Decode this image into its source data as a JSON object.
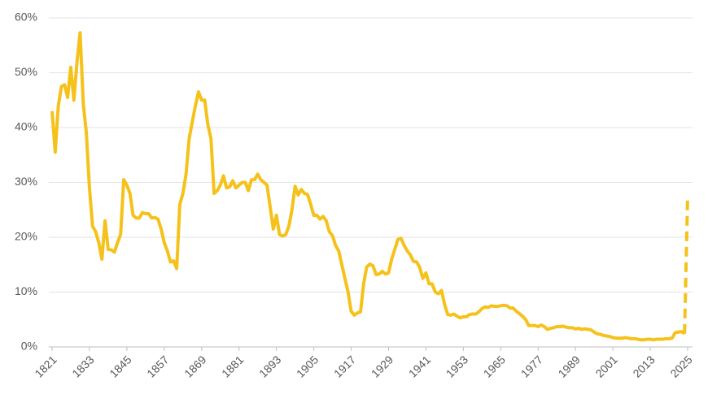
{
  "chart_data": {
    "type": "line",
    "xlim": [
      1821,
      2025
    ],
    "xticks": [
      1821,
      1833,
      1845,
      1857,
      1869,
      1881,
      1893,
      1905,
      1917,
      1929,
      1941,
      1953,
      1965,
      1977,
      1989,
      2001,
      2013,
      2025
    ],
    "ylim": [
      0,
      60
    ],
    "yticks": [
      {
        "value": 0,
        "label": "0%"
      },
      {
        "value": 10,
        "label": "10%"
      },
      {
        "value": 20,
        "label": "20%"
      },
      {
        "value": 30,
        "label": "30%"
      },
      {
        "value": 40,
        "label": "40%"
      },
      {
        "value": 50,
        "label": "50%"
      },
      {
        "value": 60,
        "label": "60%"
      }
    ],
    "grid": true,
    "series": [
      {
        "color": "#f5c21b",
        "dashed": false,
        "x": [
          1821,
          1822,
          1823,
          1824,
          1825,
          1826,
          1827,
          1828,
          1829,
          1830,
          1831,
          1832,
          1833,
          1834,
          1835,
          1836,
          1837,
          1838,
          1839,
          1840,
          1841,
          1842,
          1843,
          1844,
          1845,
          1846,
          1847,
          1848,
          1849,
          1850,
          1851,
          1852,
          1853,
          1854,
          1855,
          1856,
          1857,
          1858,
          1859,
          1860,
          1861,
          1862,
          1863,
          1864,
          1865,
          1866,
          1867,
          1868,
          1869,
          1870,
          1871,
          1872,
          1873,
          1874,
          1875,
          1876,
          1877,
          1878,
          1879,
          1880,
          1881,
          1882,
          1883,
          1884,
          1885,
          1886,
          1887,
          1888,
          1889,
          1890,
          1891,
          1892,
          1893,
          1894,
          1895,
          1896,
          1897,
          1898,
          1899,
          1900,
          1901,
          1902,
          1903,
          1904,
          1905,
          1906,
          1907,
          1908,
          1909,
          1910,
          1911,
          1912,
          1913,
          1914,
          1915,
          1916,
          1917,
          1918,
          1919,
          1920,
          1921,
          1922,
          1923,
          1924,
          1925,
          1926,
          1927,
          1928,
          1929,
          1930,
          1931,
          1932,
          1933,
          1934,
          1935,
          1936,
          1937,
          1938,
          1939,
          1940,
          1941,
          1942,
          1943,
          1944,
          1945,
          1946,
          1947,
          1948,
          1949,
          1950,
          1951,
          1952,
          1953,
          1954,
          1955,
          1956,
          1957,
          1958,
          1959,
          1960,
          1961,
          1962,
          1963,
          1964,
          1965,
          1966,
          1967,
          1968,
          1969,
          1970,
          1971,
          1972,
          1973,
          1974,
          1975,
          1976,
          1977,
          1978,
          1979,
          1980,
          1981,
          1982,
          1983,
          1984,
          1985,
          1986,
          1987,
          1988,
          1989,
          1990,
          1991,
          1992,
          1993,
          1994,
          1995,
          1996,
          1997,
          1998,
          1999,
          2000,
          2001,
          2002,
          2003,
          2004,
          2005,
          2006,
          2007,
          2008,
          2009,
          2010,
          2011,
          2012,
          2013,
          2014,
          2015,
          2016,
          2017,
          2018,
          2019,
          2020,
          2021,
          2022,
          2023,
          2024
        ],
        "values": [
          43,
          35.5,
          44,
          47.5,
          47.8,
          45.5,
          51,
          45,
          52,
          57.3,
          44.5,
          39,
          29,
          22,
          21,
          19,
          16,
          23,
          17.8,
          17.7,
          17.3,
          19,
          20.5,
          30.5,
          29.5,
          28,
          24,
          23.5,
          23.5,
          24.5,
          24.3,
          24.3,
          23.5,
          23.6,
          23.3,
          21.5,
          19,
          17.5,
          15.5,
          15.7,
          14.3,
          26,
          28,
          31.5,
          38,
          41,
          44,
          46.5,
          45,
          45,
          40.5,
          38,
          28,
          28.5,
          29.5,
          31.2,
          29,
          29.2,
          30.3,
          29,
          29.5,
          30,
          30,
          28.5,
          30.5,
          30.5,
          31.5,
          30.5,
          30,
          29.5,
          25.5,
          21.5,
          24,
          20.5,
          20.2,
          20.5,
          22,
          25,
          29.3,
          27.7,
          28.7,
          28,
          27.8,
          26,
          24,
          24,
          23.3,
          23.8,
          23,
          21,
          20.3,
          18.5,
          17.5,
          15,
          12.5,
          10,
          6.5,
          5.8,
          6.2,
          6.4,
          11.5,
          14.6,
          15.1,
          14.8,
          13.2,
          13.3,
          13.8,
          13.3,
          13.5,
          16,
          17.8,
          19.6,
          19.8,
          18.5,
          17.5,
          16.8,
          15.6,
          15.5,
          14.5,
          12.5,
          13.5,
          11.5,
          11.5,
          10,
          9.7,
          10.3,
          7.7,
          5.9,
          5.8,
          6,
          5.6,
          5.3,
          5.5,
          5.5,
          5.9,
          6,
          6,
          6.4,
          7,
          7.3,
          7.2,
          7.5,
          7.4,
          7.4,
          7.5,
          7.6,
          7.5,
          7.1,
          7.1,
          6.5,
          6.1,
          5.6,
          5,
          3.9,
          3.9,
          3.9,
          3.7,
          4,
          3.7,
          3.2,
          3.4,
          3.5,
          3.7,
          3.7,
          3.8,
          3.6,
          3.5,
          3.5,
          3.3,
          3.4,
          3.2,
          3.3,
          3.2,
          3.1,
          2.7,
          2.4,
          2.3,
          2.1,
          2,
          1.9,
          1.7,
          1.6,
          1.6,
          1.6,
          1.7,
          1.6,
          1.5,
          1.5,
          1.4,
          1.3,
          1.3,
          1.4,
          1.4,
          1.3,
          1.4,
          1.4,
          1.4,
          1.5,
          1.5,
          1.6,
          2.6,
          2.7,
          2.8,
          2.4
        ]
      },
      {
        "color": "#f5c21b",
        "dashed": true,
        "x": [
          2024,
          2025
        ],
        "values": [
          2.4,
          27.5
        ]
      }
    ]
  }
}
